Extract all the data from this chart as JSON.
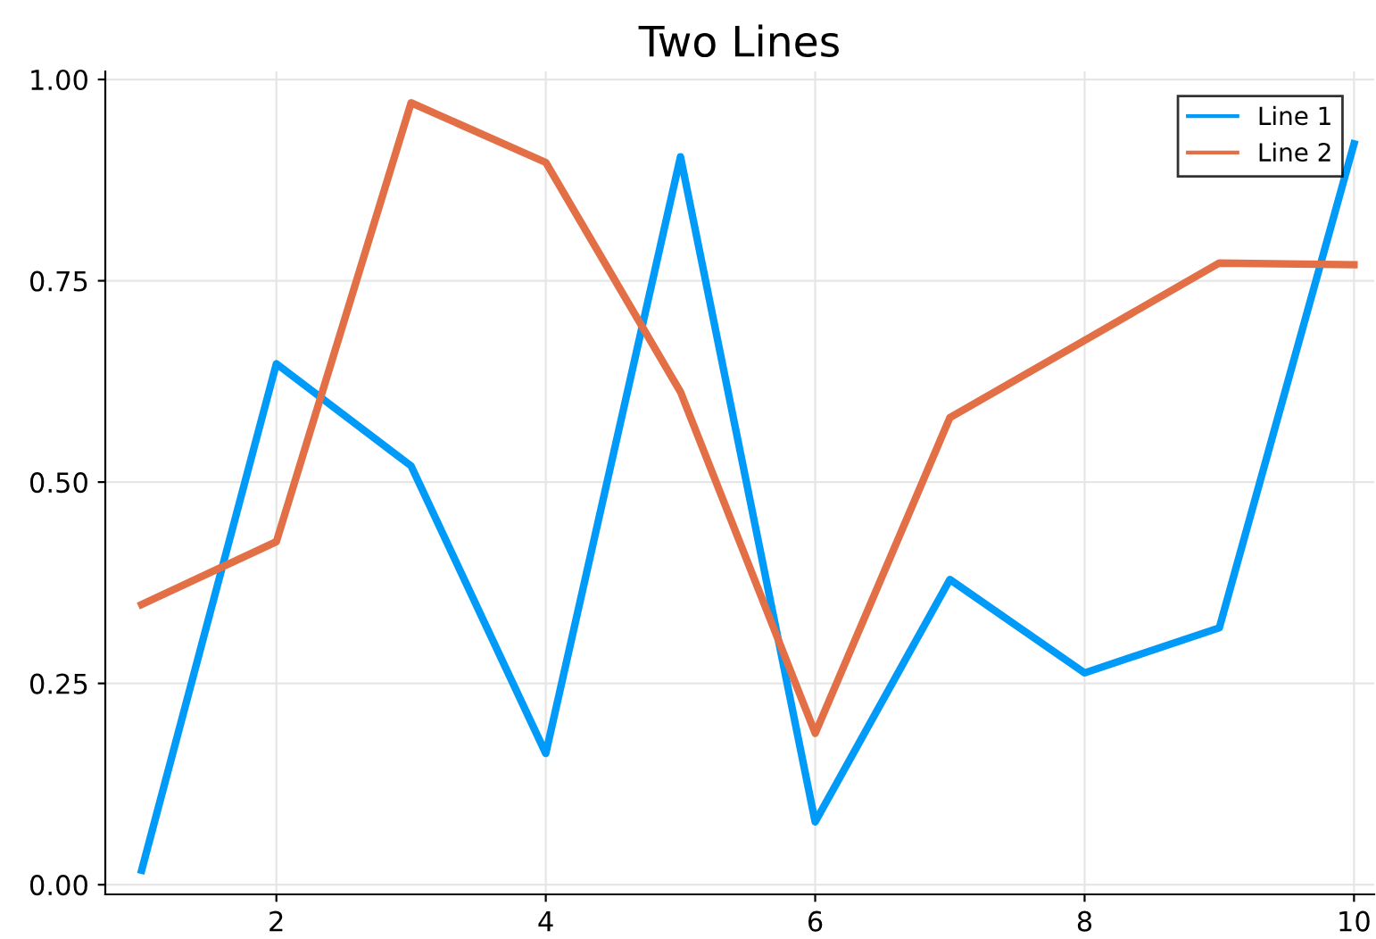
{
  "chart_data": {
    "type": "line",
    "title": "Two Lines",
    "x": [
      1,
      2,
      3,
      4,
      5,
      6,
      7,
      8,
      9,
      10
    ],
    "series": [
      {
        "name": "Line 1",
        "color": "#009af9",
        "values": [
          0.018,
          0.647,
          0.52,
          0.163,
          0.904,
          0.078,
          0.379,
          0.263,
          0.319,
          0.92
        ]
      },
      {
        "name": "Line 2",
        "color": "#e26f46",
        "values": [
          0.348,
          0.426,
          0.971,
          0.897,
          0.612,
          0.188,
          0.58,
          0.676,
          0.772,
          0.77
        ]
      }
    ],
    "xlim": [
      0.73,
      10.15
    ],
    "ylim": [
      -0.012,
      1.01
    ],
    "xticks": [
      2,
      4,
      6,
      8,
      10
    ],
    "yticks": [
      {
        "value": 0,
        "label": "0.00"
      },
      {
        "value": 0.25,
        "label": "0.25"
      },
      {
        "value": 0.5,
        "label": "0.50"
      },
      {
        "value": 0.75,
        "label": "0.75"
      },
      {
        "value": 1,
        "label": "1.00"
      }
    ],
    "grid": true,
    "legend": "top right",
    "line_style": "solid",
    "marker": "none"
  }
}
